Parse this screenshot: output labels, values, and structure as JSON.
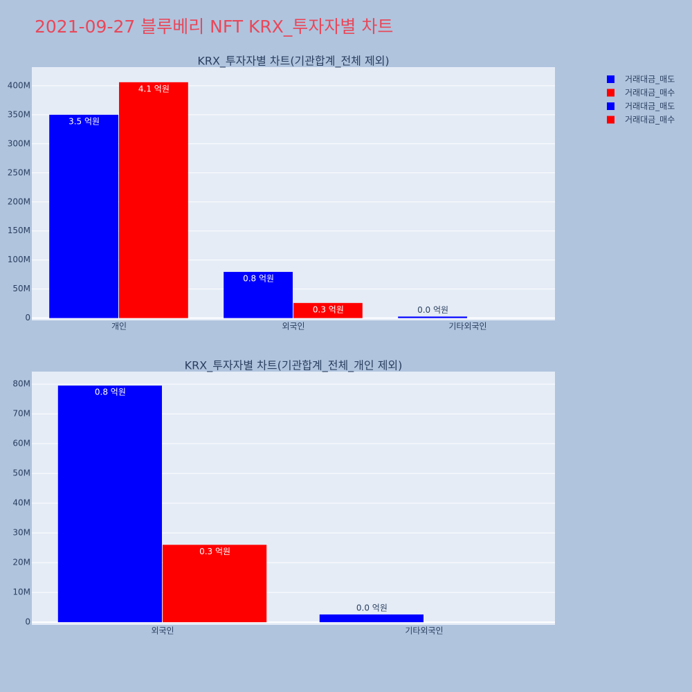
{
  "title": "2021-09-27 블루베리 NFT KRX_투자자별 차트",
  "chart_data": [
    {
      "type": "bar",
      "title": "KRX_투자자별 차트(기관합계_전체 제외)",
      "categories": [
        "개인",
        "외국인",
        "기타외국인"
      ],
      "series": [
        {
          "name": "거래대금_매도",
          "color": "#0000ff",
          "values": [
            350000000,
            79500000,
            2600000
          ],
          "value_labels": [
            "3.5 억원",
            "0.8 억원",
            "0.0 억원"
          ]
        },
        {
          "name": "거래대금_매수",
          "color": "#ff0000",
          "values": [
            406000000,
            26000000,
            0
          ],
          "value_labels": [
            "4.1 억원",
            "0.3 억원",
            null
          ]
        }
      ],
      "ylim": [
        -4000000,
        432000000
      ],
      "yticks": [
        0,
        {
          "value": 50000000,
          "label": "50M"
        },
        {
          "value": 100000000,
          "label": "100M"
        },
        {
          "value": 150000000,
          "label": "150M"
        },
        {
          "value": 200000000,
          "label": "200M"
        },
        {
          "value": 250000000,
          "label": "250M"
        },
        {
          "value": 300000000,
          "label": "300M"
        },
        {
          "value": 350000000,
          "label": "350M"
        },
        {
          "value": 400000000,
          "label": "400M"
        }
      ],
      "grid": true
    },
    {
      "type": "bar",
      "title": "KRX_투자자별 차트(기관합계_전체_개인 제외)",
      "categories": [
        "외국인",
        "기타외국인"
      ],
      "series": [
        {
          "name": "거래대금_매도",
          "color": "#0000ff",
          "values": [
            79500000,
            2600000
          ],
          "value_labels": [
            "0.8 억원",
            "0.0 억원"
          ]
        },
        {
          "name": "거래대금_매수",
          "color": "#ff0000",
          "values": [
            26000000,
            0
          ],
          "value_labels": [
            "0.3 억원",
            null
          ]
        }
      ],
      "ylim": [
        -900000,
        84200000
      ],
      "yticks": [
        0,
        {
          "value": 10000000,
          "label": "10M"
        },
        {
          "value": 20000000,
          "label": "20M"
        },
        {
          "value": 30000000,
          "label": "30M"
        },
        {
          "value": 40000000,
          "label": "40M"
        },
        {
          "value": 50000000,
          "label": "50M"
        },
        {
          "value": 60000000,
          "label": "60M"
        },
        {
          "value": 70000000,
          "label": "70M"
        },
        {
          "value": 80000000,
          "label": "80M"
        }
      ],
      "grid": true
    }
  ]
}
